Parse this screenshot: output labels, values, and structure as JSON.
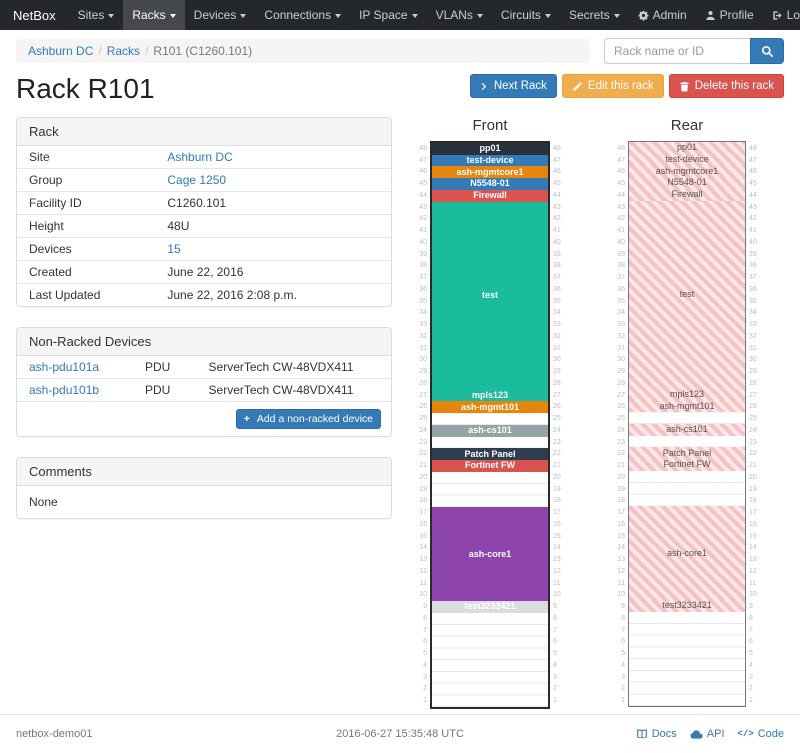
{
  "navbar": {
    "brand": "NetBox",
    "items": [
      "Sites",
      "Racks",
      "Devices",
      "Connections",
      "IP Space",
      "VLANs",
      "Circuits",
      "Secrets"
    ],
    "active_item": "Racks",
    "right_items": [
      {
        "label": "Admin",
        "icon": "gear"
      },
      {
        "label": "Profile",
        "icon": "user"
      },
      {
        "label": "Log out",
        "icon": "logout"
      }
    ]
  },
  "breadcrumb": {
    "items": [
      "Ashburn DC",
      "Racks",
      "R101 (C1260.101)"
    ]
  },
  "search": {
    "placeholder": "Rack name or ID"
  },
  "actions": [
    {
      "label": "Next Rack",
      "style": "primary",
      "icon": "chevron"
    },
    {
      "label": "Edit this rack",
      "style": "warning",
      "icon": "pencil"
    },
    {
      "label": "Delete this rack",
      "style": "danger",
      "icon": "trash"
    }
  ],
  "page_title": "Rack R101",
  "rack_panel": {
    "title": "Rack",
    "rows": [
      {
        "label": "Site",
        "value": "Ashburn DC",
        "link": true
      },
      {
        "label": "Group",
        "value": "Cage 1250",
        "link": true
      },
      {
        "label": "Facility ID",
        "value": "C1260.101",
        "link": false
      },
      {
        "label": "Height",
        "value": "48U",
        "link": false
      },
      {
        "label": "Devices",
        "value": "15",
        "link": true
      },
      {
        "label": "Created",
        "value": "June 22, 2016",
        "link": false
      },
      {
        "label": "Last Updated",
        "value": "June 22, 2016 2:08 p.m.",
        "link": false
      }
    ]
  },
  "non_racked": {
    "title": "Non-Racked Devices",
    "rows": [
      {
        "name": "ash-pdu101a",
        "role": "PDU",
        "type": "ServerTech CW-48VDX411"
      },
      {
        "name": "ash-pdu101b",
        "role": "PDU",
        "type": "ServerTech CW-48VDX411"
      }
    ],
    "add_button_label": "Add a non-racked device"
  },
  "comments": {
    "title": "Comments",
    "body": "None"
  },
  "elevations": {
    "front_title": "Front",
    "rear_title": "Rear",
    "height_units": 48,
    "devices": [
      {
        "name": "pp01",
        "top_unit": 48,
        "u_height": 1,
        "color": "#29323c"
      },
      {
        "name": "test-device",
        "top_unit": 47,
        "u_height": 1,
        "color": "#337ab7"
      },
      {
        "name": "ash-mgmtcore1",
        "top_unit": 46,
        "u_height": 1,
        "color": "#e8850d"
      },
      {
        "name": "N5548-01",
        "top_unit": 45,
        "u_height": 1,
        "color": "#337ab7"
      },
      {
        "name": "Firewall",
        "top_unit": 44,
        "u_height": 1,
        "color": "#d9534f"
      },
      {
        "name": "test",
        "top_unit": 43,
        "u_height": 16,
        "color": "#1abc9c"
      },
      {
        "name": "mpls123",
        "top_unit": 27,
        "u_height": 1,
        "color": "#1abc9c"
      },
      {
        "name": "ash-mgmt101",
        "top_unit": 26,
        "u_height": 1,
        "color": "#e8850d"
      },
      {
        "name": "ash-cs101",
        "top_unit": 24,
        "u_height": 1,
        "color": "#95a5a6"
      },
      {
        "name": "Patch Panel",
        "top_unit": 22,
        "u_height": 1,
        "color": "#2f3e4e"
      },
      {
        "name": "Fortinet FW",
        "top_unit": 21,
        "u_height": 1,
        "color": "#d9534f"
      },
      {
        "name": "ash-core1",
        "top_unit": 17,
        "u_height": 8,
        "color": "#8e44ad"
      },
      {
        "name": "test3233421",
        "top_unit": 9,
        "u_height": 1,
        "color": "#dadde0",
        "text_color": "#ffffff"
      }
    ]
  },
  "footer": {
    "hostname": "netbox-demo01",
    "timestamp": "2016-06-27 15:35:48 UTC",
    "links": [
      {
        "label": "Docs",
        "icon": "book"
      },
      {
        "label": "API",
        "icon": "cloud"
      },
      {
        "label": "Code",
        "icon": "code"
      }
    ]
  }
}
